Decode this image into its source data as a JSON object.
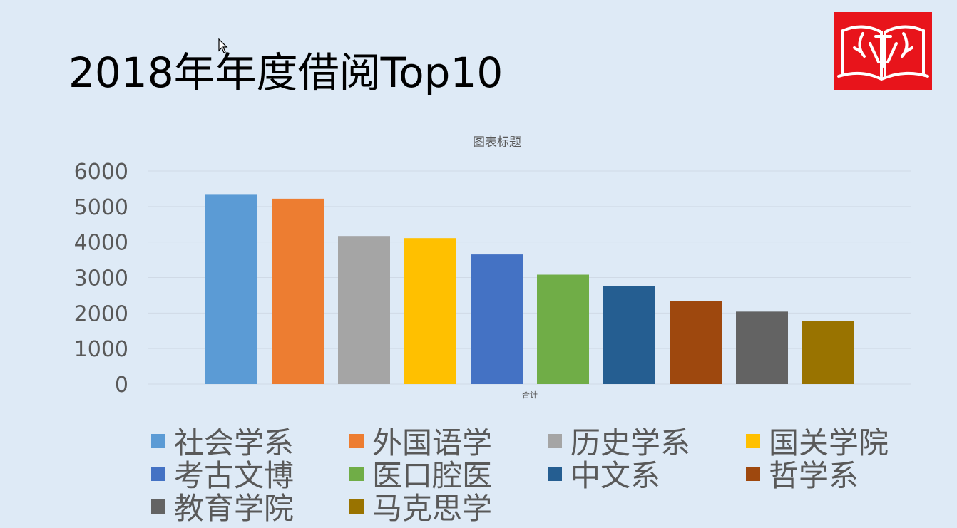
{
  "slide": {
    "title": "2018年年度借阅Top10"
  },
  "chart_data": {
    "type": "bar",
    "title": "图表标题",
    "categories": [
      "合计"
    ],
    "xlabel": "",
    "ylabel": "",
    "ylim": [
      0,
      6000
    ],
    "yticks": [
      0,
      1000,
      2000,
      3000,
      4000,
      5000,
      6000
    ],
    "grid": true,
    "legend_position": "bottom",
    "series": [
      {
        "name": "社会学系",
        "values": [
          5350
        ],
        "color": "#5b9bd5"
      },
      {
        "name": "外国语学",
        "values": [
          5220
        ],
        "color": "#ed7d31"
      },
      {
        "name": "历史学系",
        "values": [
          4170
        ],
        "color": "#a5a5a5"
      },
      {
        "name": "国关学院",
        "values": [
          4110
        ],
        "color": "#ffc000"
      },
      {
        "name": "考古文博",
        "values": [
          3650
        ],
        "color": "#4472c4"
      },
      {
        "name": "医口腔医",
        "values": [
          3080
        ],
        "color": "#70ad47"
      },
      {
        "name": "中文系",
        "values": [
          2760
        ],
        "color": "#255e91"
      },
      {
        "name": "哲学系",
        "values": [
          2340
        ],
        "color": "#9e480e"
      },
      {
        "name": "教育学院",
        "values": [
          2040
        ],
        "color": "#636363"
      },
      {
        "name": "马克思学",
        "values": [
          1780
        ],
        "color": "#997300"
      }
    ]
  },
  "colors": {
    "background": "#deeaf6",
    "logo_red": "#e8141b",
    "axis_text": "#595959",
    "gridline": "#d0dae6"
  }
}
